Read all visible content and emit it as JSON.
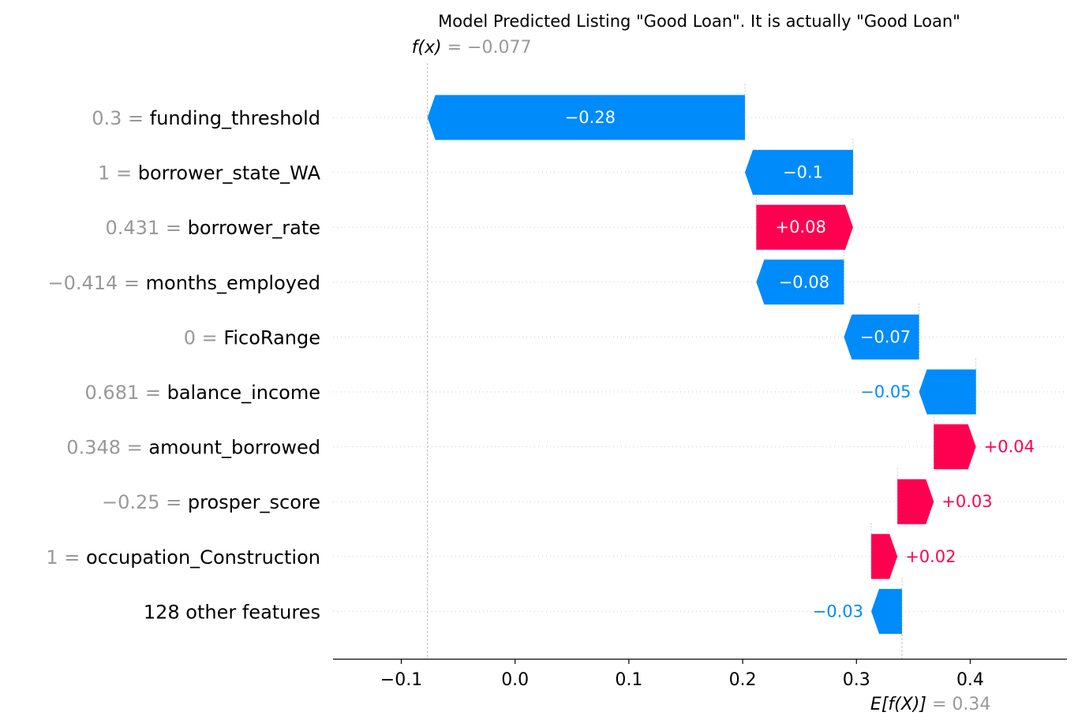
{
  "chart_data": {
    "type": "waterfall",
    "title": "Model Predicted Listing \"Good Loan\". It is actually \"Good Loan\"",
    "fx_label": "f(x)",
    "fx_value_text": "= −0.077",
    "fx_value": -0.077,
    "base_label": "E[f(X)]",
    "base_value_text": "= 0.34",
    "base_value": 0.34,
    "xlim": [
      -0.16,
      0.485
    ],
    "ticks": [
      -0.1,
      0.0,
      0.1,
      0.2,
      0.3,
      0.4
    ],
    "tick_labels": [
      "−0.1",
      "0.0",
      "0.1",
      "0.2",
      "0.3",
      "0.4"
    ],
    "colors": {
      "positive": "#ff0051",
      "negative": "#008bfb",
      "feature_value": "#999999",
      "grid": "#cccccc"
    },
    "features": [
      {
        "value_text": "0.3 =",
        "name": "funding_threshold",
        "start": 0.202,
        "end": -0.077,
        "label": "−0.28",
        "label_inside": true
      },
      {
        "value_text": "1 =",
        "name": "borrower_state_WA",
        "start": 0.297,
        "end": 0.202,
        "label": "−0.1",
        "label_inside": true
      },
      {
        "value_text": "0.431 =",
        "name": "borrower_rate",
        "start": 0.212,
        "end": 0.297,
        "label": "+0.08",
        "label_inside": true
      },
      {
        "value_text": "−0.414 =",
        "name": "months_employed",
        "start": 0.289,
        "end": 0.212,
        "label": "−0.08",
        "label_inside": true
      },
      {
        "value_text": "0 =",
        "name": "FicoRange",
        "start": 0.355,
        "end": 0.289,
        "label": "−0.07",
        "label_inside": true
      },
      {
        "value_text": "0.681 =",
        "name": "balance_income",
        "start": 0.405,
        "end": 0.355,
        "label": "−0.05",
        "label_inside": false
      },
      {
        "value_text": "0.348 =",
        "name": "amount_borrowed",
        "start": 0.368,
        "end": 0.405,
        "label": "+0.04",
        "label_inside": false
      },
      {
        "value_text": "−0.25 =",
        "name": "prosper_score",
        "start": 0.336,
        "end": 0.368,
        "label": "+0.03",
        "label_inside": false
      },
      {
        "value_text": "1 =",
        "name": "occupation_Construction",
        "start": 0.313,
        "end": 0.336,
        "label": "+0.02",
        "label_inside": false
      },
      {
        "value_text": "",
        "name": "128 other features",
        "start": 0.34,
        "end": 0.313,
        "label": "−0.03",
        "label_inside": false
      }
    ]
  }
}
